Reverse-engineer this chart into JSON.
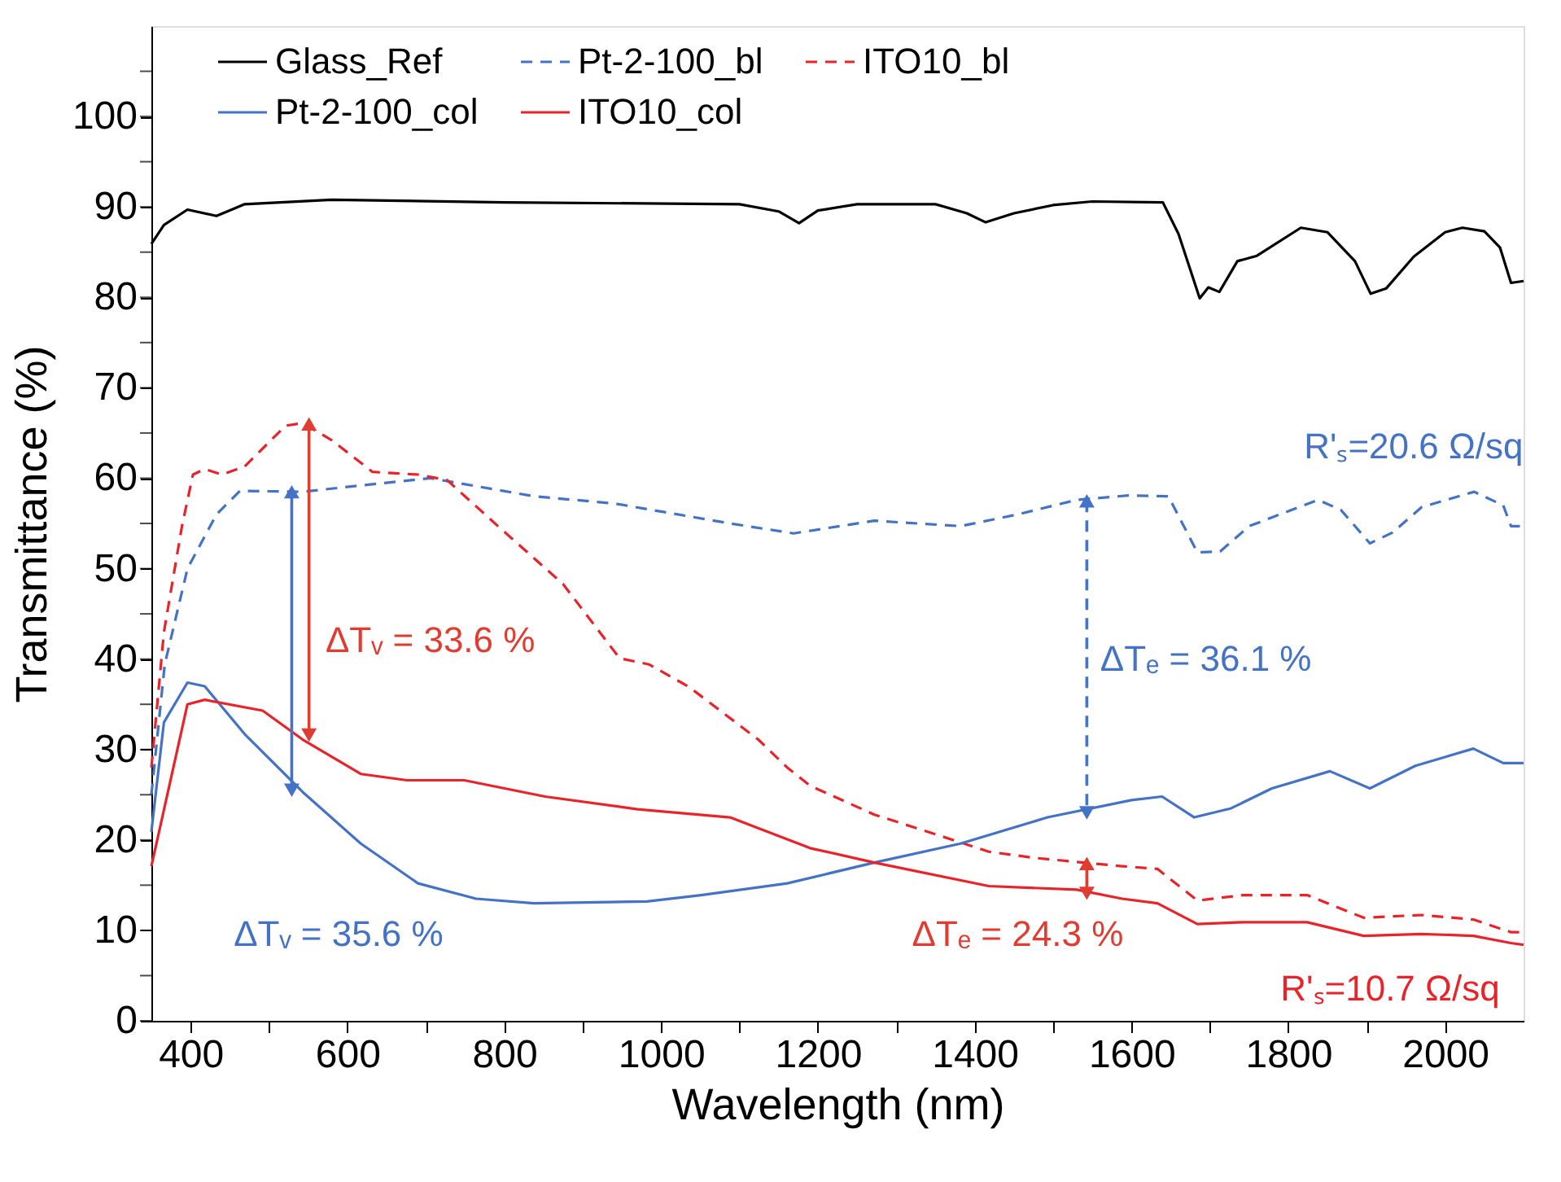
{
  "chart_data": {
    "type": "line",
    "xlabel": "Wavelength (nm)",
    "ylabel": "Transmittance (%)",
    "xlim": [
      350,
      2100
    ],
    "ylim": [
      0,
      110
    ],
    "xticks": [
      400,
      {
        "value": 500,
        "label": null
      },
      600,
      {
        "value": 700,
        "label": null
      },
      800,
      {
        "value": 900,
        "label": null
      },
      1000,
      {
        "value": 1100,
        "label": null
      },
      1200,
      {
        "value": 1300,
        "label": null
      },
      1400,
      {
        "value": 1500,
        "label": null
      },
      1600,
      {
        "value": 1700,
        "label": null
      },
      1800,
      {
        "value": 1900,
        "label": null
      },
      2000
    ],
    "yticks": [
      0,
      {
        "value": 5,
        "label": null
      },
      10,
      {
        "value": 15,
        "label": null
      },
      20,
      {
        "value": 25,
        "label": null
      },
      30,
      {
        "value": 35,
        "label": null
      },
      40,
      {
        "value": 45,
        "label": null
      },
      50,
      {
        "value": 55,
        "label": null
      },
      60,
      {
        "value": 65,
        "label": null
      },
      70,
      {
        "value": 75,
        "label": null
      },
      80,
      {
        "value": 85,
        "label": null
      },
      90,
      {
        "value": 95,
        "label": null
      },
      100,
      {
        "value": 105,
        "label": null
      }
    ],
    "grid": false,
    "legend": "top",
    "marker": "none",
    "series": [
      {
        "name": "Glass_Ref",
        "color": "#000000",
        "line_style": "solid",
        "x": [
          350,
          366,
          396,
          433,
          469,
          580,
          800,
          1100,
          1150,
          1176,
          1200,
          1250,
          1350,
          1390,
          1414,
          1450,
          1500,
          1550,
          1640,
          1660,
          1687,
          1698,
          1712,
          1735,
          1760,
          1816,
          1850,
          1885,
          1905,
          1925,
          1960,
          2000,
          2022,
          2050,
          2070,
          2084,
          2100
        ],
        "values": [
          85.9,
          88,
          89.7,
          89,
          90.3,
          90.8,
          90.5,
          90.3,
          89.5,
          88.2,
          89.6,
          90.3,
          90.3,
          89.3,
          88.3,
          89.3,
          90.2,
          90.6,
          90.5,
          87,
          79.9,
          81.1,
          80.6,
          84,
          84.6,
          87.7,
          87.2,
          84,
          80.4,
          81,
          84.5,
          87.2,
          87.7,
          87.3,
          85.5,
          81.6,
          81.8
        ]
      },
      {
        "name": "Pt-2-100_bl",
        "color": "#4472c4",
        "line_style": "dashed",
        "x": [
          350,
          367,
          396,
          433,
          463,
          543,
          617,
          706,
          838,
          941,
          1088,
          1169,
          1272,
          1382,
          1455,
          1530,
          1596,
          1647,
          1684,
          1713,
          1750,
          1838,
          1867,
          1904,
          1933,
          1970,
          2037,
          2074,
          2084,
          2100
        ],
        "values": [
          25,
          39.4,
          50,
          56,
          58.6,
          58.5,
          59.2,
          60,
          58,
          57.2,
          55,
          53.9,
          55.3,
          54.7,
          56,
          57.6,
          58.1,
          58,
          51.8,
          51.9,
          54.7,
          57.6,
          56.5,
          52.8,
          54,
          56.8,
          58.5,
          57,
          54.7,
          54.7
        ]
      },
      {
        "name": "ITO10_bl",
        "color": "#e8232a",
        "line_style": "dashed",
        "x": [
          350,
          366,
          389,
          403,
          418,
          440,
          469,
          521,
          543,
          580,
          632,
          690,
          727,
          792,
          875,
          947,
          985,
          1036,
          1124,
          1161,
          1190,
          1272,
          1344,
          1418,
          1478,
          1588,
          1633,
          1684,
          1742,
          1824,
          1896,
          1970,
          2036,
          2084,
          2100
        ],
        "values": [
          28,
          43,
          54.7,
          60.4,
          61,
          60.4,
          61.3,
          65.8,
          66.1,
          64.2,
          60.7,
          60.4,
          59.8,
          54.7,
          48.3,
          40.1,
          39.4,
          36.9,
          31.1,
          28,
          26,
          22.8,
          20.8,
          18.7,
          18,
          17.1,
          16.8,
          13.3,
          13.9,
          13.9,
          11.4,
          11.7,
          11.2,
          9.8,
          9.8
        ]
      },
      {
        "name": "Pt-2-100_col",
        "color": "#4472c4",
        "line_style": "solid",
        "x": [
          350,
          366,
          396,
          418,
          469,
          543,
          617,
          690,
          764,
          838,
          982,
          1051,
          1161,
          1272,
          1382,
          1493,
          1600,
          1639,
          1680,
          1727,
          1779,
          1853,
          1904,
          1962,
          2036,
          2074,
          2100
        ],
        "values": [
          20.9,
          33,
          37.4,
          37,
          31.7,
          25.3,
          19.6,
          15.2,
          13.5,
          13,
          13.2,
          13.9,
          15.2,
          17.5,
          19.6,
          22.5,
          24.4,
          24.8,
          22.5,
          23.5,
          25.7,
          27.6,
          25.7,
          28.2,
          30.1,
          28.5,
          28.5
        ]
      },
      {
        "name": "ITO10_col",
        "color": "#e8232a",
        "line_style": "solid",
        "x": [
          350,
          396,
          418,
          492,
          543,
          617,
          676,
          749,
          852,
          970,
          1088,
          1190,
          1272,
          1418,
          1530,
          1588,
          1633,
          1684,
          1742,
          1824,
          1896,
          1970,
          2036,
          2084,
          2100
        ],
        "values": [
          17.1,
          35,
          35.5,
          34.3,
          31.1,
          27.3,
          26.6,
          26.6,
          24.8,
          23.4,
          22.5,
          19.1,
          17.5,
          14.9,
          14.5,
          13.5,
          13,
          10.7,
          10.9,
          10.9,
          9.4,
          9.6,
          9.4,
          8.6,
          8.4
        ]
      },
      {
        "type": "line",
        "color": "#e03c31",
        "line_style": "solid",
        "marker": "triangle",
        "x": [
          551,
          551
        ],
        "values": [
          66,
          31.6
        ]
      },
      {
        "type": "line",
        "color": "#4472c4",
        "line_style": "solid",
        "marker": "triangle",
        "x": [
          529,
          529
        ],
        "values": [
          58.5,
          25.5
        ]
      },
      {
        "type": "line",
        "color": "#4472c4",
        "line_style": "dashed",
        "marker": "triangle",
        "x": [
          1543,
          1543
        ],
        "values": [
          57.5,
          23
        ]
      },
      {
        "type": "line",
        "color": "#e03c31",
        "line_style": "solid",
        "marker": "triangle",
        "x": [
          1543,
          1543
        ],
        "values": [
          17.4,
          14.1
        ]
      }
    ],
    "annotations": [
      "ΔTᵥ = 33.6 %",
      "ΔTᵥ = 35.6 %",
      "ΔTₑ = 36.1 %",
      "ΔTₑ = 24.3 %",
      "R'ₛ=20.6 Ω/sq",
      "R'ₛ=10.7 Ω/sq"
    ]
  }
}
